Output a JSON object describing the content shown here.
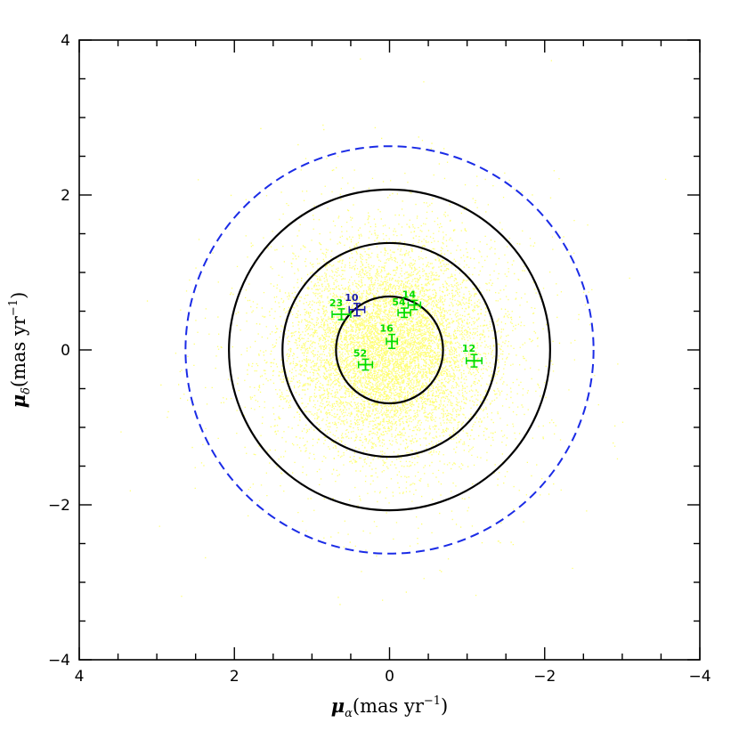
{
  "chart_data": {
    "type": "scatter",
    "xlabel": {
      "greek": "μ",
      "sub": "α",
      "unit": "(mas yr",
      "exp": "−1",
      "close": ")"
    },
    "ylabel": {
      "greek": "μ",
      "sub": "δ",
      "unit": "(mas yr",
      "exp": "−1",
      "close": ")"
    },
    "xlim": [
      4,
      -4
    ],
    "ylim": [
      -4,
      4
    ],
    "x_ticks": [
      4,
      2,
      0,
      -2,
      -4
    ],
    "y_ticks": [
      4,
      2,
      0,
      -2,
      -4
    ],
    "x_tick_labels": [
      "4",
      "2",
      "0",
      "−2",
      "−4"
    ],
    "y_tick_labels": [
      "4",
      "2",
      "0",
      "−2",
      "−4"
    ],
    "grid": false,
    "field_cloud": {
      "color": "#ffff00",
      "center": [
        0,
        0
      ],
      "description_note": "dense field-star proper motion distribution"
    },
    "circles": [
      {
        "radius": 0.69,
        "style": "solid",
        "color": "#000000"
      },
      {
        "radius": 1.38,
        "style": "solid",
        "color": "#000000"
      },
      {
        "radius": 2.07,
        "style": "solid",
        "color": "#000000"
      },
      {
        "radius": 2.63,
        "style": "dashed",
        "color": "#1a2be6"
      }
    ],
    "points": [
      {
        "label": "23",
        "x": 0.62,
        "y": 0.46,
        "xerr": 0.12,
        "yerr": 0.07,
        "color": "#00dd00"
      },
      {
        "label": "10",
        "x": 0.42,
        "y": 0.52,
        "xerr": 0.1,
        "yerr": 0.08,
        "color": "#1a1aaa"
      },
      {
        "label": "54",
        "x": -0.19,
        "y": 0.48,
        "xerr": 0.08,
        "yerr": 0.06,
        "color": "#00dd00"
      },
      {
        "label": "14",
        "x": -0.32,
        "y": 0.58,
        "xerr": 0.08,
        "yerr": 0.06,
        "color": "#00dd00"
      },
      {
        "label": "16",
        "x": -0.03,
        "y": 0.11,
        "xerr": 0.07,
        "yerr": 0.09,
        "color": "#00dd00"
      },
      {
        "label": "52",
        "x": 0.31,
        "y": -0.19,
        "xerr": 0.09,
        "yerr": 0.07,
        "color": "#00dd00"
      },
      {
        "label": "12",
        "x": -1.09,
        "y": -0.14,
        "xerr": 0.1,
        "yerr": 0.08,
        "color": "#00dd00"
      }
    ]
  }
}
